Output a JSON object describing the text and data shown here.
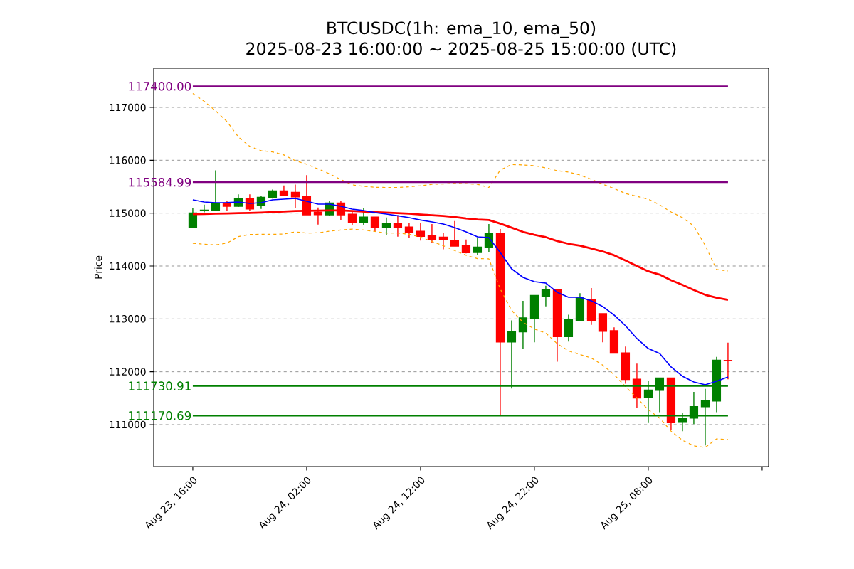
{
  "chart_data": {
    "type": "candlestick",
    "title": "BTCUSDC(1h: ema_10, ema_50)",
    "subtitle": "2025-08-23 16:00:00 ~ 2025-08-25 15:00:00 (UTC)",
    "ylabel": "Price",
    "x": [
      "2025-08-23T16:00",
      "2025-08-23T17:00",
      "2025-08-23T18:00",
      "2025-08-23T19:00",
      "2025-08-23T20:00",
      "2025-08-23T21:00",
      "2025-08-23T22:00",
      "2025-08-23T23:00",
      "2025-08-24T00:00",
      "2025-08-24T01:00",
      "2025-08-24T02:00",
      "2025-08-24T03:00",
      "2025-08-24T04:00",
      "2025-08-24T05:00",
      "2025-08-24T06:00",
      "2025-08-24T07:00",
      "2025-08-24T08:00",
      "2025-08-24T09:00",
      "2025-08-24T10:00",
      "2025-08-24T11:00",
      "2025-08-24T12:00",
      "2025-08-24T13:00",
      "2025-08-24T14:00",
      "2025-08-24T15:00",
      "2025-08-24T16:00",
      "2025-08-24T17:00",
      "2025-08-24T18:00",
      "2025-08-24T19:00",
      "2025-08-24T20:00",
      "2025-08-24T21:00",
      "2025-08-24T22:00",
      "2025-08-24T23:00",
      "2025-08-25T00:00",
      "2025-08-25T01:00",
      "2025-08-25T02:00",
      "2025-08-25T03:00",
      "2025-08-25T04:00",
      "2025-08-25T05:00",
      "2025-08-25T06:00",
      "2025-08-25T07:00",
      "2025-08-25T08:00",
      "2025-08-25T09:00",
      "2025-08-25T10:00",
      "2025-08-25T11:00",
      "2025-08-25T12:00",
      "2025-08-25T13:00",
      "2025-08-25T14:00",
      "2025-08-25T15:00"
    ],
    "ohlc": [
      [
        114726,
        115094,
        114717,
        115000
      ],
      [
        115050,
        115160,
        115015,
        115055
      ],
      [
        115050,
        115810,
        115035,
        115185
      ],
      [
        115190,
        115235,
        115050,
        115130
      ],
      [
        115130,
        115355,
        115115,
        115270
      ],
      [
        115270,
        115355,
        115040,
        115081
      ],
      [
        115148,
        115328,
        115081,
        115296
      ],
      [
        115296,
        115445,
        115274,
        115418
      ],
      [
        115418,
        115525,
        115332,
        115332
      ],
      [
        115390,
        115539,
        115103,
        115310
      ],
      [
        115310,
        115718,
        114969,
        114969
      ],
      [
        115018,
        115108,
        114784,
        114973
      ],
      [
        114969,
        115233,
        114955,
        115189
      ],
      [
        115189,
        115233,
        114865,
        114969
      ],
      [
        114978,
        115045,
        114780,
        114820
      ],
      [
        114820,
        115094,
        114780,
        114923
      ],
      [
        114923,
        114925,
        114644,
        114730
      ],
      [
        114730,
        114919,
        114586,
        114797
      ],
      [
        114797,
        114960,
        114555,
        114730
      ],
      [
        114734,
        114820,
        114527,
        114644
      ],
      [
        114653,
        114811,
        114482,
        114563
      ],
      [
        114572,
        114793,
        114437,
        114509
      ],
      [
        114545,
        114622,
        114316,
        114496
      ],
      [
        114478,
        114851,
        114379,
        114379
      ],
      [
        114383,
        114500,
        114240,
        114253
      ],
      [
        114257,
        114541,
        114203,
        114356
      ],
      [
        114352,
        114793,
        114262,
        114622
      ],
      [
        114622,
        114699,
        111170,
        112565
      ],
      [
        112565,
        112970,
        111684,
        112763
      ],
      [
        112755,
        113340,
        112440,
        113016
      ],
      [
        113016,
        113440,
        112557,
        113439
      ],
      [
        113434,
        113628,
        113236,
        113547
      ],
      [
        113547,
        113547,
        112192,
        112666
      ],
      [
        112666,
        113079,
        112570,
        112980
      ],
      [
        112970,
        113484,
        112970,
        113394
      ],
      [
        113367,
        113583,
        112885,
        112970
      ],
      [
        113097,
        113097,
        112557,
        112768
      ],
      [
        112773,
        112840,
        112354,
        112354
      ],
      [
        112354,
        112476,
        111774,
        111855
      ],
      [
        111855,
        112152,
        111315,
        111504
      ],
      [
        111515,
        111835,
        111029,
        111650
      ],
      [
        111650,
        111880,
        111236,
        111880
      ],
      [
        111880,
        111880,
        110898,
        111038
      ],
      [
        111043,
        111214,
        110876,
        111124
      ],
      [
        111124,
        111619,
        111011,
        111340
      ],
      [
        111340,
        111677,
        110606,
        111452
      ],
      [
        111448,
        112280,
        111236,
        112217
      ],
      [
        112212,
        112550,
        111857,
        112208
      ]
    ],
    "colors": [
      "#008000",
      "#008000",
      "#008000",
      "#ff0000",
      "#008000",
      "#ff0000",
      "#008000",
      "#008000",
      "#ff0000",
      "#ff0000",
      "#ff0000",
      "#ff0000",
      "#008000",
      "#ff0000",
      "#ff0000",
      "#008000",
      "#ff0000",
      "#008000",
      "#ff0000",
      "#ff0000",
      "#ff0000",
      "#ff0000",
      "#ff0000",
      "#ff0000",
      "#ff0000",
      "#008000",
      "#008000",
      "#ff0000",
      "#008000",
      "#008000",
      "#008000",
      "#008000",
      "#ff0000",
      "#008000",
      "#008000",
      "#ff0000",
      "#ff0000",
      "#ff0000",
      "#ff0000",
      "#ff0000",
      "#008000",
      "#008000",
      "#ff0000",
      "#008000",
      "#008000",
      "#008000",
      "#008000",
      "#ff0000"
    ],
    "series": [
      {
        "type": "line",
        "color": "#ffa500",
        "line_style": "dashed",
        "values": [
          117263,
          117115,
          116935,
          116733,
          116441,
          116262,
          116181,
          116158,
          116100,
          115992,
          115925,
          115835,
          115745,
          115635,
          115535,
          115508,
          115490,
          115486,
          115486,
          115500,
          115518,
          115545,
          115553,
          115562,
          115558,
          115545,
          115486,
          115815,
          115920,
          115910,
          115897,
          115857,
          115803,
          115776,
          115722,
          115641,
          115547,
          115466,
          115372,
          115318,
          115265,
          115157,
          115022,
          114915,
          114754,
          114390,
          113933,
          113906
        ]
      },
      {
        "type": "line",
        "color": "#ffa500",
        "line_style": "dashed",
        "values": [
          114430,
          114412,
          114398,
          114434,
          114556,
          114596,
          114600,
          114600,
          114605,
          114645,
          114623,
          114627,
          114659,
          114681,
          114698,
          114680,
          114653,
          114622,
          114622,
          114600,
          114545,
          114464,
          114383,
          114293,
          114203,
          114140,
          114136,
          113565,
          113160,
          112935,
          112808,
          112732,
          112530,
          112395,
          112327,
          112260,
          112125,
          111945,
          111720,
          111506,
          111281,
          111124,
          110876,
          110705,
          110597,
          110570,
          110732,
          110718
        ]
      },
      {
        "type": "line",
        "color": "#ff0000",
        "line_style": "solid",
        "values": [
          114982,
          114985,
          114990,
          114995,
          115000,
          115005,
          115012,
          115020,
          115030,
          115040,
          115045,
          115049,
          115050,
          115050,
          115040,
          115030,
          115020,
          115010,
          115000,
          114990,
          114975,
          114960,
          114945,
          114925,
          114900,
          114880,
          114870,
          114802,
          114725,
          114645,
          114590,
          114545,
          114473,
          114420,
          114384,
          114330,
          114275,
          114203,
          114104,
          114000,
          113900,
          113837,
          113730,
          113643,
          113545,
          113454,
          113400,
          113360
        ]
      },
      {
        "type": "line",
        "color": "#0000ff",
        "line_style": "solid",
        "values": [
          115251,
          115211,
          115197,
          115200,
          115211,
          115184,
          115197,
          115251,
          115265,
          115278,
          115224,
          115170,
          115170,
          115130,
          115076,
          115049,
          115010,
          114982,
          114950,
          114915,
          114870,
          114834,
          114794,
          114726,
          114646,
          114552,
          114538,
          114256,
          113946,
          113785,
          113704,
          113677,
          113503,
          113409,
          113409,
          113341,
          113234,
          113072,
          112870,
          112628,
          112439,
          112345,
          112090,
          111915,
          111807,
          111753,
          111821,
          111902
        ]
      }
    ],
    "ref_lines": [
      {
        "axis": "y",
        "value": 117400,
        "label": "117400.00",
        "color": "#800080"
      },
      {
        "axis": "y",
        "value": 115584.99,
        "label": "115584.99",
        "color": "#800080"
      },
      {
        "axis": "y",
        "value": 111730.91,
        "label": "111730.91",
        "color": "#008000"
      },
      {
        "axis": "y",
        "value": 111170.69,
        "label": "111170.69",
        "color": "#008000"
      }
    ],
    "xlim": [
      "2025-08-23T12:34",
      "2025-08-25T18:34"
    ],
    "xticks": [
      {
        "value": "2025-08-23T16:00",
        "label": "Aug 23, 16:00"
      },
      {
        "value": "2025-08-24T02:00",
        "label": "Aug 24, 02:00"
      },
      {
        "value": "2025-08-24T12:00",
        "label": "Aug 24, 12:00"
      },
      {
        "value": "2025-08-24T22:00",
        "label": "Aug 24, 22:00"
      },
      {
        "value": "2025-08-25T08:00",
        "label": "Aug 25, 08:00"
      },
      {
        "value": "2025-08-25T18:00",
        "label": null
      }
    ],
    "ylim": [
      110206,
      117740
    ],
    "yticks": [
      111000,
      112000,
      113000,
      114000,
      115000,
      116000,
      117000
    ],
    "grid": "y",
    "marker": "none"
  }
}
